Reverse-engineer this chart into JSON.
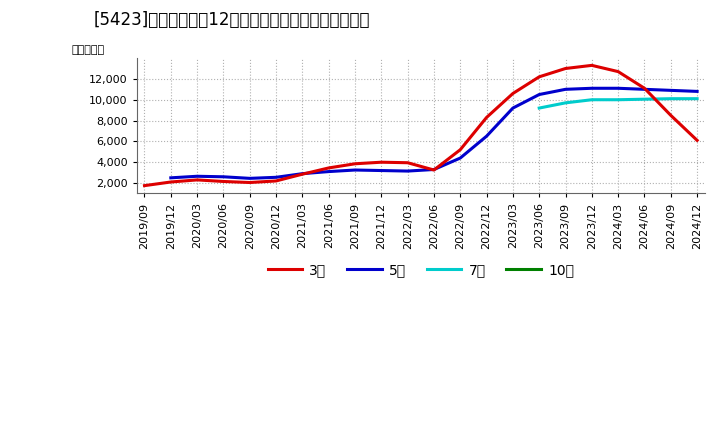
{
  "title": "[5423]　当期純利益12か月移動合計の標準偏差の推移",
  "ylabel": "（百万円）",
  "ylim": [
    1000,
    14000
  ],
  "yticks": [
    2000,
    4000,
    6000,
    8000,
    10000,
    12000
  ],
  "background_color": "#ffffff",
  "plot_background": "#ffffff",
  "grid_color": "#b0b0b0",
  "title_fontsize": 12,
  "colors": {
    "3y": "#dd0000",
    "5y": "#0000cc",
    "7y": "#00cccc",
    "10y": "#008000"
  },
  "legend_labels": [
    "3年",
    "5年",
    "7年",
    "10年"
  ],
  "x_labels": [
    "2019/09",
    "2019/12",
    "2020/03",
    "2020/06",
    "2020/09",
    "2020/12",
    "2021/03",
    "2021/06",
    "2021/09",
    "2021/12",
    "2022/03",
    "2022/06",
    "2022/09",
    "2022/12",
    "2023/03",
    "2023/06",
    "2023/09",
    "2023/12",
    "2024/03",
    "2024/06",
    "2024/09",
    "2024/12"
  ],
  "data_3y": [
    1750,
    2100,
    2300,
    2150,
    2050,
    2200,
    2850,
    3450,
    3850,
    4000,
    3950,
    3250,
    5200,
    8300,
    10600,
    12200,
    13000,
    13300,
    12700,
    11100,
    8500,
    6100
  ],
  "data_5y": [
    null,
    2500,
    2650,
    2600,
    2450,
    2550,
    2900,
    3100,
    3250,
    3200,
    3150,
    3300,
    4400,
    6500,
    9200,
    10500,
    11000,
    11100,
    11100,
    11000,
    10900,
    10800
  ],
  "data_7y": [
    null,
    null,
    null,
    null,
    null,
    null,
    null,
    null,
    null,
    null,
    null,
    null,
    null,
    null,
    null,
    9200,
    9700,
    10000,
    10000,
    10050,
    10100,
    10100
  ],
  "data_10y": [
    null,
    null,
    null,
    null,
    null,
    null,
    null,
    null,
    null,
    null,
    null,
    null,
    null,
    null,
    null,
    null,
    null,
    null,
    null,
    null,
    null,
    null
  ]
}
